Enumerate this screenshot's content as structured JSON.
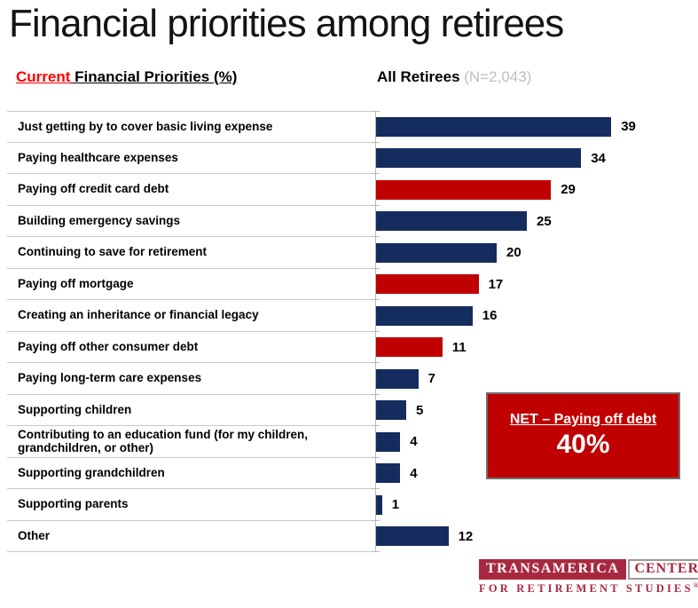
{
  "slide": {
    "title": "Financial priorities among retirees",
    "subtitle_highlight": "Current",
    "subtitle_rest": " Financial Priorities (%)",
    "header_right_label": "All Retirees",
    "header_right_sample": " (N=2,043)"
  },
  "chart_data": {
    "type": "bar",
    "orientation": "horizontal",
    "title": "Current Financial Priorities (%)",
    "subtitle": "All Retirees (N=2,043)",
    "categories": [
      "Just getting by to cover basic living expense",
      "Paying healthcare expenses",
      "Paying off credit card debt",
      "Building emergency savings",
      "Continuing to save for retirement",
      "Paying off mortgage",
      "Creating an inheritance or financial legacy",
      "Paying off other consumer debt",
      "Paying long-term care expenses",
      "Supporting children",
      "Contributing to an education fund (for my children, grandchildren, or other)",
      "Supporting grandchildren",
      "Supporting parents",
      "Other"
    ],
    "values": [
      39,
      34,
      29,
      25,
      20,
      17,
      16,
      11,
      7,
      5,
      4,
      4,
      1,
      12
    ],
    "colors": [
      "#152c5e",
      "#152c5e",
      "#c00000",
      "#152c5e",
      "#152c5e",
      "#c00000",
      "#152c5e",
      "#c00000",
      "#152c5e",
      "#152c5e",
      "#152c5e",
      "#152c5e",
      "#152c5e",
      "#152c5e"
    ],
    "bar_color_default": "#152c5e",
    "bar_color_highlight": "#c00000",
    "xlim": [
      0,
      50
    ],
    "grid": false,
    "value_labels": true,
    "legend": "none"
  },
  "net_box": {
    "label": "NET – Paying off debt",
    "value": "40%",
    "background": "#c00000"
  },
  "logo": {
    "brand": "TRANSAMERICA",
    "center": "CENTER",
    "tagline": "FOR RETIREMENT STUDIES",
    "registered": "®"
  }
}
